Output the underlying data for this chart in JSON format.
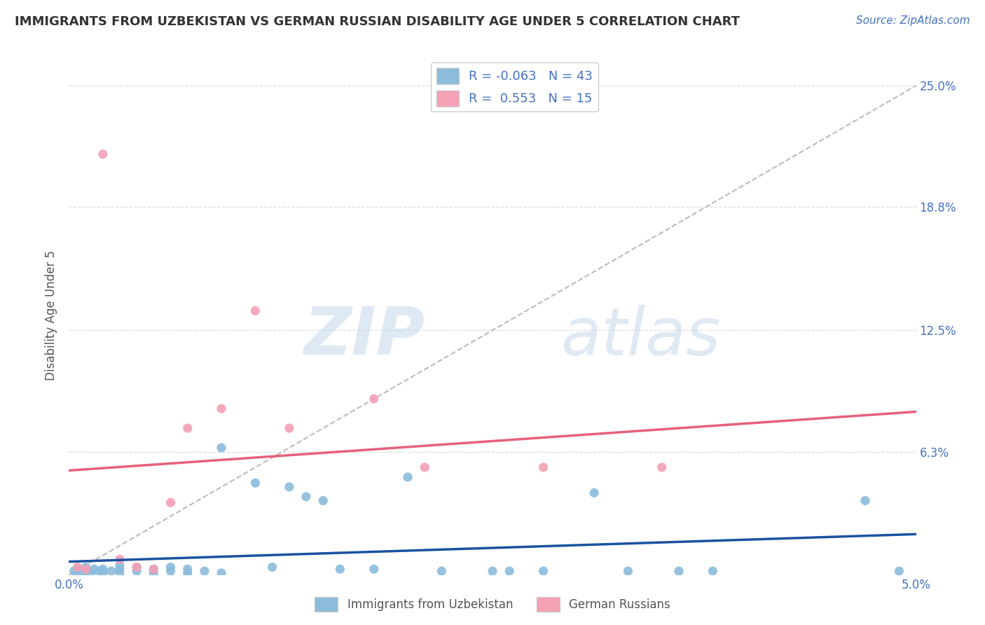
{
  "title": "IMMIGRANTS FROM UZBEKISTAN VS GERMAN RUSSIAN DISABILITY AGE UNDER 5 CORRELATION CHART",
  "source_text": "Source: ZipAtlas.com",
  "ylabel": "Disability Age Under 5",
  "y_tick_labels_right": [
    "6.3%",
    "12.5%",
    "18.8%",
    "25.0%"
  ],
  "y_tick_values_right": [
    0.063,
    0.125,
    0.188,
    0.25
  ],
  "legend_label_blue": "Immigrants from Uzbekistan",
  "legend_label_pink": "German Russians",
  "r_blue": -0.063,
  "n_blue": 43,
  "r_pink": 0.553,
  "n_pink": 15,
  "color_blue": "#8BBCDC",
  "color_pink": "#F4A0B5",
  "color_line_blue": "#1A52A0",
  "color_line_pink": "#E8607A",
  "color_diag": "#BBBBBB",
  "color_grid": "#DDDDDD",
  "background_color": "#FFFFFF",
  "watermark_color": "#C8DFF0",
  "xlim": [
    0.0,
    0.05
  ],
  "ylim": [
    0.0,
    0.265
  ],
  "blue_x": [
    0.0003,
    0.0005,
    0.0007,
    0.001,
    0.001,
    0.0013,
    0.0015,
    0.0018,
    0.002,
    0.002,
    0.0025,
    0.003,
    0.003,
    0.003,
    0.004,
    0.004,
    0.005,
    0.005,
    0.006,
    0.006,
    0.007,
    0.007,
    0.008,
    0.009,
    0.009,
    0.011,
    0.012,
    0.013,
    0.014,
    0.015,
    0.016,
    0.018,
    0.02,
    0.022,
    0.025,
    0.026,
    0.028,
    0.031,
    0.033,
    0.036,
    0.038,
    0.047,
    0.049
  ],
  "blue_y": [
    0.002,
    0.003,
    0.001,
    0.004,
    0.002,
    0.001,
    0.003,
    0.002,
    0.003,
    0.001,
    0.002,
    0.001,
    0.003,
    0.005,
    0.002,
    0.004,
    0.001,
    0.003,
    0.002,
    0.004,
    0.001,
    0.003,
    0.002,
    0.065,
    0.001,
    0.047,
    0.004,
    0.045,
    0.04,
    0.038,
    0.003,
    0.003,
    0.05,
    0.002,
    0.002,
    0.002,
    0.002,
    0.042,
    0.002,
    0.002,
    0.002,
    0.038,
    0.002
  ],
  "pink_x": [
    0.0005,
    0.001,
    0.002,
    0.003,
    0.004,
    0.005,
    0.006,
    0.007,
    0.009,
    0.011,
    0.013,
    0.018,
    0.021,
    0.028,
    0.035
  ],
  "pink_y": [
    0.004,
    0.003,
    0.215,
    0.008,
    0.004,
    0.003,
    0.037,
    0.075,
    0.085,
    0.135,
    0.075,
    0.09,
    0.055,
    0.055,
    0.055
  ]
}
